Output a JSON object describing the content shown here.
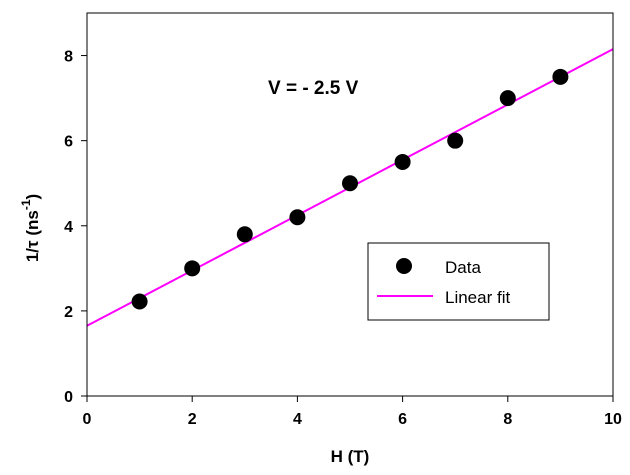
{
  "chart_data": {
    "type": "scatter",
    "xlabel": "H (T)",
    "ylabel": "1/τ (ns",
    "ylabel_sup": "-1",
    "ylabel_close": ")",
    "xlim": [
      0,
      10
    ],
    "ylim": [
      0,
      9
    ],
    "xticks": [
      0,
      2,
      4,
      6,
      8,
      10
    ],
    "yticks": [
      0,
      2,
      4,
      6,
      8
    ],
    "annotation": "V = - 2.5 V",
    "grid": false,
    "legend_position": "right",
    "series": [
      {
        "name": "Data",
        "kind": "points",
        "color": "#000000",
        "x": [
          1,
          2,
          3,
          4,
          5,
          6,
          7,
          8,
          9
        ],
        "y": [
          2.22,
          3.0,
          3.8,
          4.2,
          5.0,
          5.5,
          6.0,
          7.0,
          7.5
        ]
      },
      {
        "name": "Linear fit",
        "kind": "line",
        "color": "#ff00ff",
        "x": [
          0,
          10
        ],
        "y": [
          1.65,
          8.15
        ]
      }
    ]
  }
}
